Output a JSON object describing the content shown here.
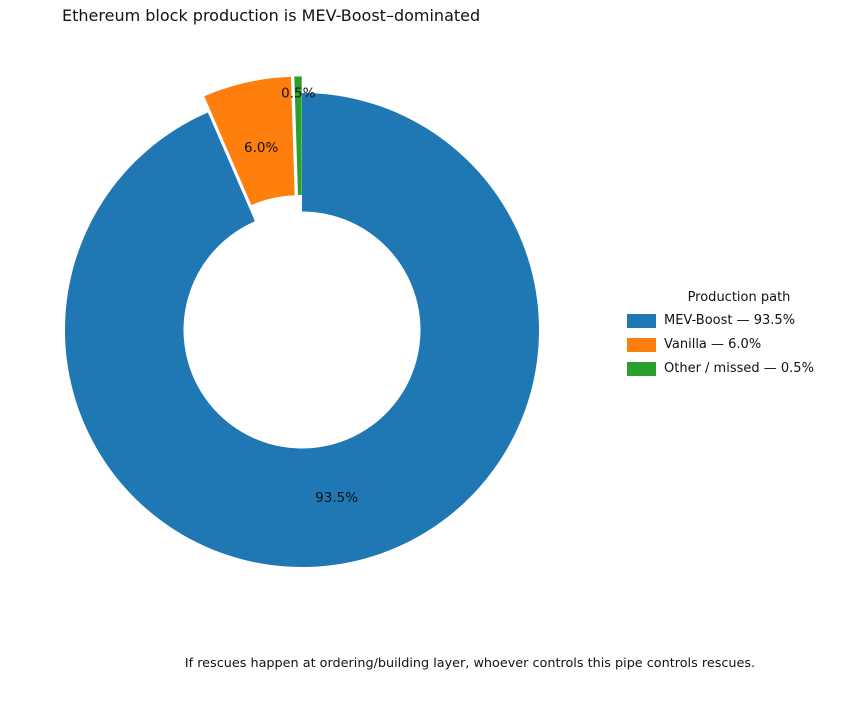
{
  "chart_data": {
    "type": "pie",
    "donut": true,
    "title": "Ethereum block production is MEV-Boost–dominated",
    "start_angle": 90,
    "clockwise": true,
    "inner_radius_ratio": 0.5,
    "slices": [
      {
        "label": "MEV-Boost",
        "value": 93.5,
        "pct_label": "93.5%",
        "color": "#1f77b4",
        "explode": 0.0
      },
      {
        "label": "Vanilla",
        "value": 6.0,
        "pct_label": "6.0%",
        "color": "#ff7f0e",
        "explode": 0.07
      },
      {
        "label": "Other / missed",
        "value": 0.5,
        "pct_label": "0.5%",
        "color": "#2ca02c",
        "explode": 0.07
      }
    ],
    "legend": {
      "title": "Production path",
      "position": "right",
      "entries": [
        {
          "label": "MEV-Boost — 93.5%",
          "color": "#1f77b4"
        },
        {
          "label": "Vanilla — 6.0%",
          "color": "#ff7f0e"
        },
        {
          "label": "Other / missed — 0.5%",
          "color": "#2ca02c"
        }
      ]
    },
    "caption": "If rescues happen at ordering/building layer, whoever controls this pipe controls rescues."
  }
}
